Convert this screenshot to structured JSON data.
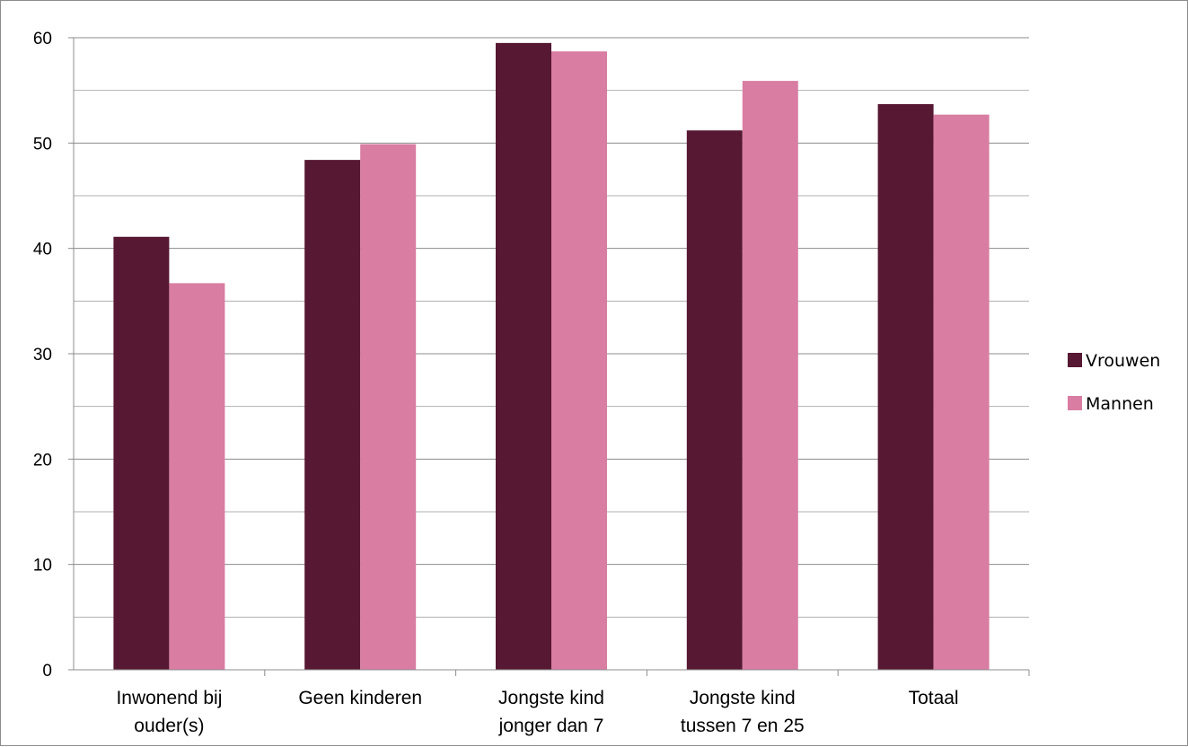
{
  "chart_data": {
    "type": "bar",
    "categories": [
      [
        "Inwonend bij",
        "ouder(s)"
      ],
      [
        "Geen kinderen"
      ],
      [
        "Jongste kind",
        "jonger dan 7"
      ],
      [
        "Jongste kind",
        "tussen 7 en 25"
      ],
      [
        "Totaal"
      ]
    ],
    "series": [
      {
        "name": "Vrouwen",
        "color": "#561832",
        "values": [
          41.1,
          48.4,
          59.5,
          51.2,
          53.7
        ]
      },
      {
        "name": "Mannen",
        "color": "#D97DA3",
        "values": [
          36.7,
          49.9,
          58.7,
          55.9,
          52.7
        ]
      }
    ],
    "ylim": [
      0,
      60
    ],
    "yticks": [
      0,
      10,
      20,
      30,
      40,
      50,
      60
    ],
    "minor_gridlines": true,
    "legend_position": "right",
    "title": "",
    "xlabel": "",
    "ylabel": ""
  }
}
